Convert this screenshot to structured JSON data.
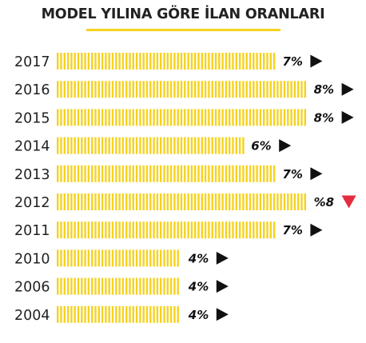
{
  "title": "MODEL YILINA GÖRE İLAN ORANLARI",
  "colors": {
    "bar": "#f6d21e",
    "title_rule": "#f6d21e",
    "arrow_neutral": "#111111",
    "arrow_down": "#e52b3f"
  },
  "chart_data": {
    "type": "bar",
    "orientation": "horizontal",
    "title": "MODEL YILINA GÖRE İLAN ORANLARI",
    "categories": [
      "2017",
      "2016",
      "2015",
      "2014",
      "2013",
      "2012",
      "2011",
      "2010",
      "2006",
      "2004"
    ],
    "values": [
      7,
      8,
      8,
      6,
      7,
      8,
      7,
      4,
      4,
      4
    ],
    "value_labels": [
      "7%",
      "8%",
      "8%",
      "6%",
      "7%",
      "%8",
      "7%",
      "4%",
      "4%",
      "4%"
    ],
    "markers": [
      "right-arrow",
      "right-arrow",
      "right-arrow",
      "right-arrow",
      "right-arrow",
      "down-arrow",
      "right-arrow",
      "right-arrow",
      "right-arrow",
      "right-arrow"
    ],
    "bar_style": "striped",
    "grid": false,
    "legend": "none"
  }
}
